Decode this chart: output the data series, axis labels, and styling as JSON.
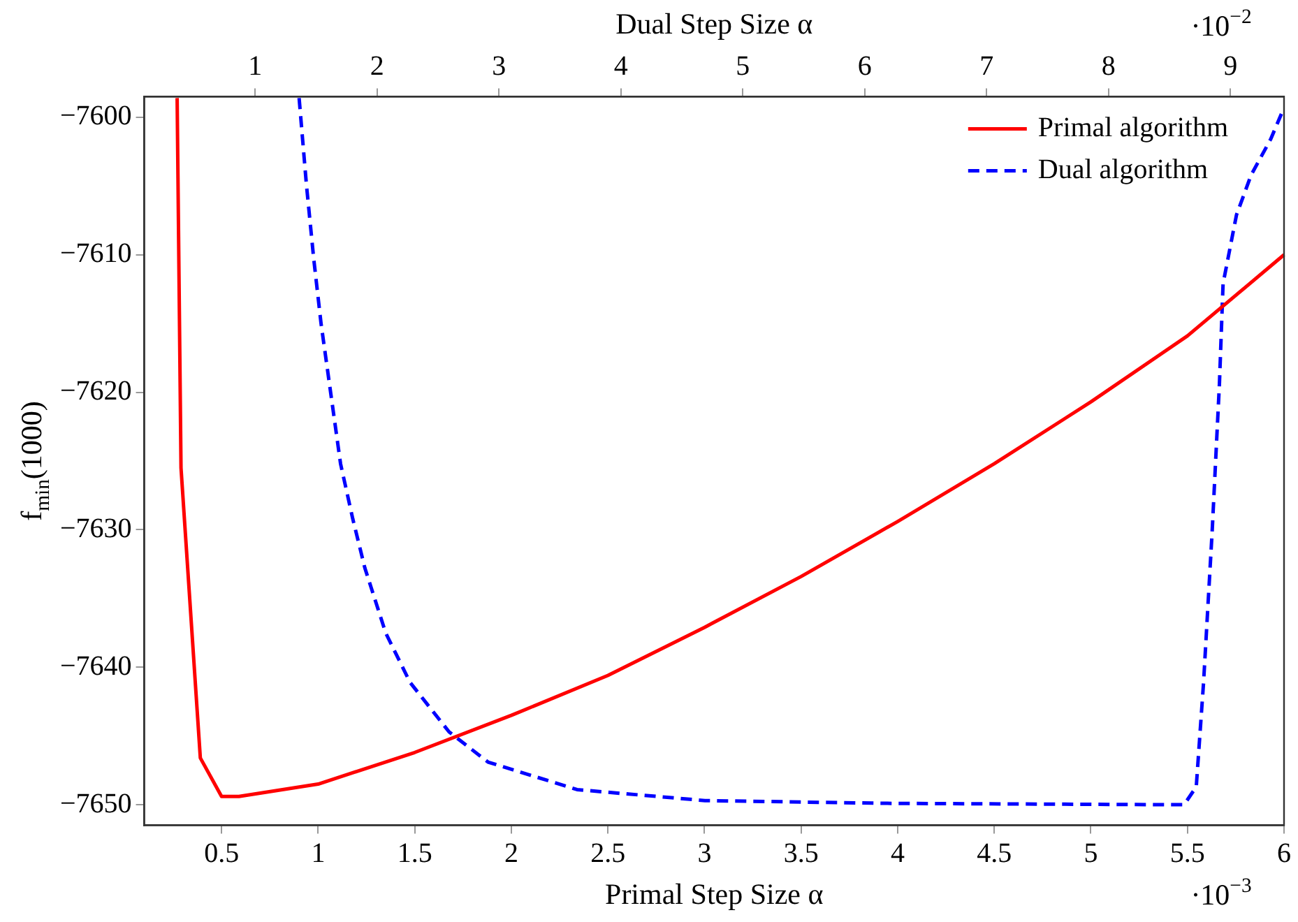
{
  "chart_data": {
    "type": "line",
    "xlabel": "Primal Step Size α",
    "x2label": "Dual Step Size α",
    "ylabel": "f$_{min}$(1000)",
    "annotations": [
      "·10$^{−3}$",
      "·10$^{−2}$"
    ],
    "xlim": [
      0.1,
      6
    ],
    "xticks": [
      0.5,
      1,
      1.5,
      2,
      2.5,
      3,
      3.5,
      4,
      4.5,
      5,
      5.5,
      6
    ],
    "x2lim": [
      0.09,
      9.44
    ],
    "x2ticks": [
      1,
      2,
      3,
      4,
      5,
      6,
      7,
      8,
      9
    ],
    "ylim": [
      -7651.5,
      -7598.5
    ],
    "yticks": [
      {
        "value": -7650,
        "label": "−7650"
      },
      {
        "value": -7640,
        "label": "−7640"
      },
      {
        "value": -7630,
        "label": "−7630"
      },
      {
        "value": -7620,
        "label": "−7620"
      },
      {
        "value": -7610,
        "label": "−7610"
      },
      {
        "value": -7600,
        "label": "−7600"
      }
    ],
    "grid": false,
    "legend": "top right",
    "marker": "none",
    "series": [
      {
        "name": "Primal algorithm",
        "color": "#ff0000",
        "line_style": "solid",
        "x": [
          0.27,
          0.29,
          0.39,
          0.5,
          0.59,
          1,
          1.5,
          2,
          2.5,
          3,
          3.5,
          4,
          4.5,
          5,
          5.5,
          6
        ],
        "values": [
          -7598.6,
          -7625.5,
          -7646.6,
          -7649.4,
          -7649.4,
          -7648.5,
          -7646.2,
          -7643.5,
          -7640.6,
          -7637.1,
          -7633.4,
          -7629.4,
          -7625.2,
          -7620.7,
          -7615.9,
          -7610
        ]
      },
      {
        "name": "Dual algorithm",
        "color": "#0000ff",
        "line_style": "dashed",
        "axis": "x2",
        "x": [
          1.36,
          1.42,
          1.48,
          1.54,
          1.62,
          1.7,
          1.8,
          1.9,
          2.07,
          2.27,
          2.59,
          2.91,
          3.64,
          4.69,
          6.18,
          8.5,
          8.62,
          8.72,
          8.78,
          8.85,
          8.91,
          8.94,
          9.05,
          9.17,
          9.33,
          9.44
        ],
        "values": [
          -7598.6,
          -7604.9,
          -7610.3,
          -7615,
          -7620.1,
          -7625.2,
          -7629.2,
          -7632.8,
          -7637.5,
          -7641.1,
          -7644.7,
          -7646.9,
          -7648.9,
          -7649.7,
          -7649.9,
          -7650,
          -7650,
          -7648.7,
          -7641.1,
          -7630.2,
          -7619.4,
          -7612.1,
          -7607.1,
          -7604.2,
          -7601.6,
          -7599.3
        ]
      }
    ]
  }
}
